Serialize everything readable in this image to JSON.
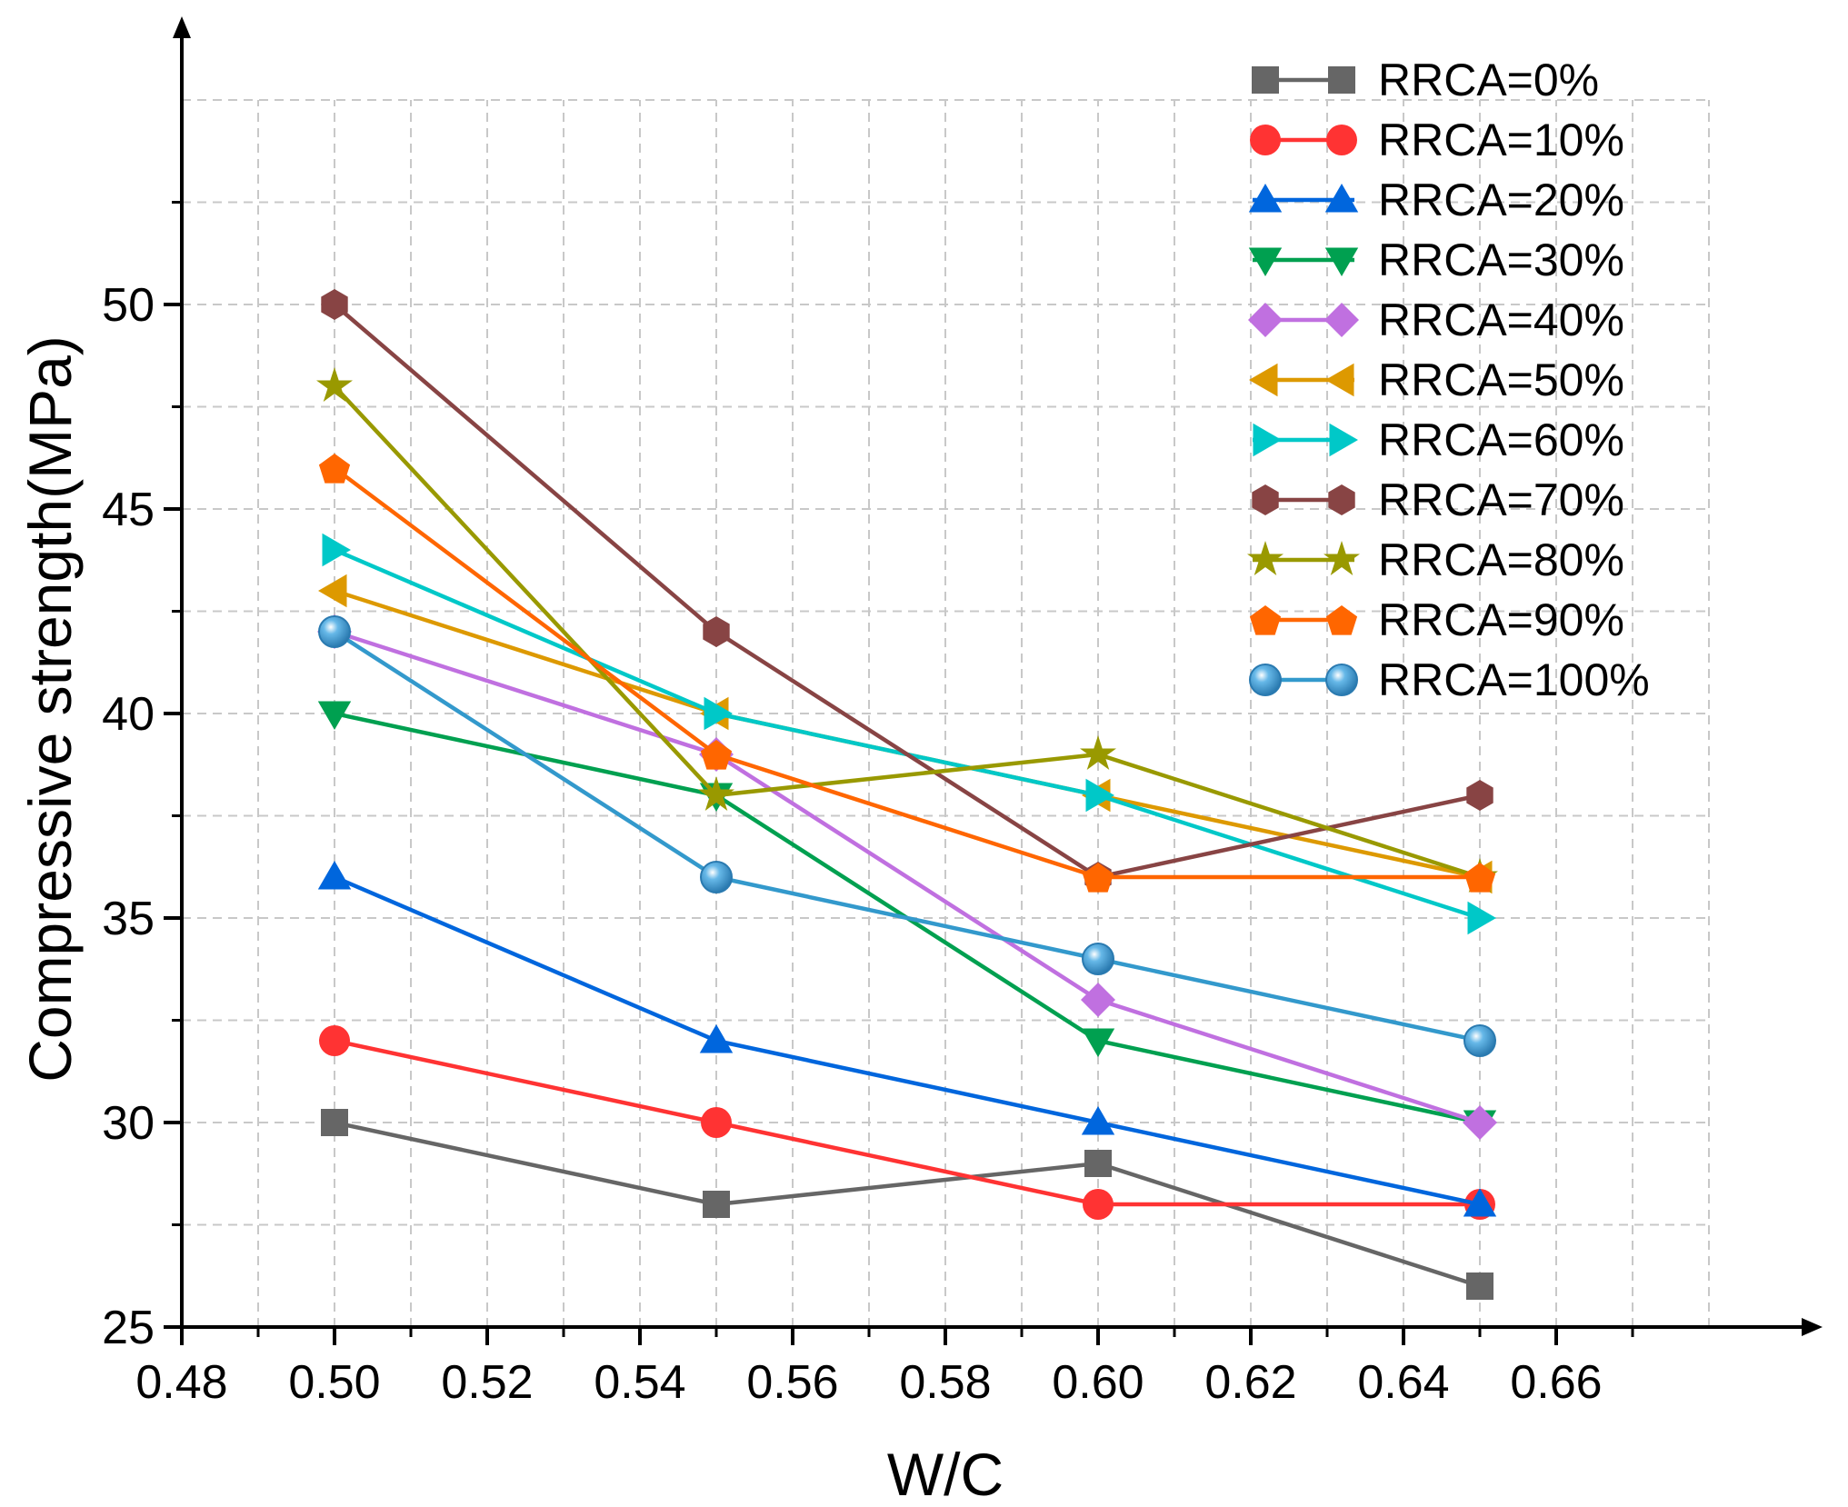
{
  "chart_data": {
    "type": "line",
    "title": "",
    "xlabel": "W/C",
    "ylabel": "Compressive strength(MPa)",
    "xlim": [
      0.48,
      0.68
    ],
    "ylim": [
      25,
      55
    ],
    "grid": true,
    "legend_position": "top-right",
    "x_ticks": [
      "0.48",
      "0.50",
      "0.52",
      "0.54",
      "0.56",
      "0.58",
      "0.60",
      "0.62",
      "0.64",
      "0.66"
    ],
    "y_ticks": [
      "25",
      "30",
      "35",
      "40",
      "45",
      "50"
    ],
    "x": [
      0.5,
      0.55,
      0.6,
      0.65
    ],
    "series": [
      {
        "name": "RRCA=0%",
        "color": "#666666",
        "marker": "square",
        "values": [
          30,
          28,
          29,
          26
        ]
      },
      {
        "name": "RRCA=10%",
        "color": "#ff3333",
        "marker": "circle",
        "values": [
          32,
          30,
          28,
          28
        ]
      },
      {
        "name": "RRCA=20%",
        "color": "#0066dd",
        "marker": "triangle-up",
        "values": [
          36,
          32,
          30,
          28
        ]
      },
      {
        "name": "RRCA=30%",
        "color": "#00a050",
        "marker": "triangle-down",
        "values": [
          40,
          38,
          32,
          30
        ]
      },
      {
        "name": "RRCA=40%",
        "color": "#c070e0",
        "marker": "diamond",
        "values": [
          42,
          39,
          33,
          30
        ]
      },
      {
        "name": "RRCA=50%",
        "color": "#dd9900",
        "marker": "triangle-left",
        "values": [
          43,
          40,
          38,
          36
        ]
      },
      {
        "name": "RRCA=60%",
        "color": "#00c8c8",
        "marker": "triangle-right",
        "values": [
          44,
          40,
          38,
          35
        ]
      },
      {
        "name": "RRCA=70%",
        "color": "#884444",
        "marker": "hexagon",
        "values": [
          50,
          42,
          36,
          38
        ]
      },
      {
        "name": "RRCA=80%",
        "color": "#999900",
        "marker": "star",
        "values": [
          48,
          38,
          39,
          36
        ]
      },
      {
        "name": "RRCA=90%",
        "color": "#ff6600",
        "marker": "pentagon",
        "values": [
          46,
          39,
          36,
          36
        ]
      },
      {
        "name": "RRCA=100%",
        "color": "#3399cc",
        "marker": "sphere",
        "values": [
          42,
          36,
          34,
          32
        ]
      }
    ]
  }
}
